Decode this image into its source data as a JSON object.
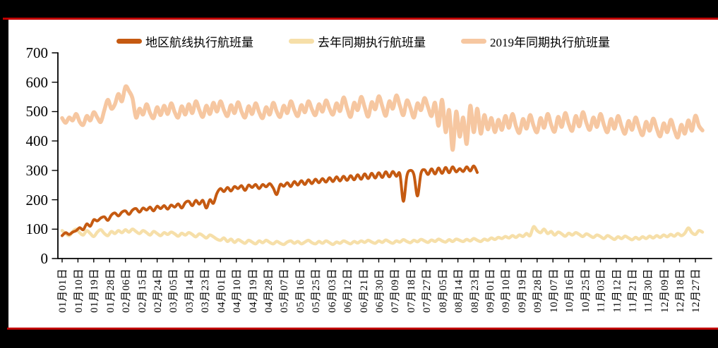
{
  "frame": {
    "outer_background": "#000000",
    "page_background": "#ffffff",
    "accent_line_color": "#c00000",
    "axis_color": "#000000",
    "text_color": "#000000"
  },
  "legend": {
    "items": [
      {
        "label": "地区航线执行航班量",
        "color": "#C55A11"
      },
      {
        "label": "去年同期执行航班量",
        "color": "#F6DFA9"
      },
      {
        "label": "2019年同期执行航班量",
        "color": "#F6C7A1"
      }
    ]
  },
  "chart_data": {
    "type": "line",
    "title": "",
    "xlabel": "",
    "ylabel": "",
    "grid": false,
    "legend_position": "top",
    "ylim": [
      0,
      700
    ],
    "y_ticks": [
      0,
      100,
      200,
      300,
      400,
      500,
      600,
      700
    ],
    "y_tick_labels": [
      "0",
      "100",
      "200",
      "300",
      "400",
      "500",
      "600",
      "700"
    ],
    "x_unit": "day_of_year",
    "x_domain": [
      1,
      365
    ],
    "x_tick_days": [
      1,
      10,
      19,
      28,
      37,
      46,
      55,
      64,
      73,
      82,
      91,
      100,
      109,
      118,
      127,
      136,
      145,
      154,
      163,
      172,
      181,
      190,
      199,
      208,
      217,
      226,
      235,
      244,
      253,
      262,
      271,
      280,
      289,
      298,
      307,
      316,
      325,
      334,
      343,
      352,
      361
    ],
    "x_tick_labels": [
      "01月01日",
      "01月10日",
      "01月19日",
      "01月28日",
      "02月06日",
      "02月15日",
      "02月24日",
      "03月05日",
      "03月14日",
      "03月23日",
      "04月01日",
      "04月10日",
      "04月19日",
      "04月28日",
      "05月07日",
      "05月16日",
      "05月25日",
      "06月03日",
      "06月12日",
      "06月21日",
      "06月30日",
      "07月09日",
      "07月18日",
      "07月27日",
      "08月05日",
      "08月14日",
      "08月23日",
      "09月01日",
      "09月10日",
      "09月19日",
      "09月28日",
      "10月07日",
      "10月16日",
      "10月25日",
      "11月03日",
      "11月12日",
      "11月21日",
      "11月30日",
      "12月09日",
      "12月18日",
      "12月27日"
    ],
    "series": [
      {
        "name": "地区航线执行航班量",
        "color": "#C55A11",
        "x_start": 1,
        "x_step": 2,
        "values": [
          78,
          88,
          82,
          90,
          95,
          105,
          98,
          118,
          110,
          132,
          128,
          138,
          142,
          130,
          148,
          155,
          145,
          158,
          162,
          150,
          165,
          170,
          158,
          172,
          165,
          175,
          162,
          178,
          170,
          180,
          168,
          182,
          175,
          186,
          172,
          190,
          195,
          180,
          198,
          185,
          198,
          172,
          200,
          188,
          222,
          238,
          228,
          242,
          230,
          245,
          238,
          248,
          232,
          250,
          242,
          252,
          238,
          252,
          244,
          255,
          240,
          218,
          252,
          246,
          258,
          245,
          262,
          250,
          265,
          252,
          268,
          255,
          270,
          258,
          272,
          260,
          275,
          262,
          278,
          264,
          280,
          266,
          282,
          268,
          285,
          270,
          288,
          272,
          290,
          274,
          292,
          276,
          295,
          278,
          296,
          280,
          288,
          195,
          282,
          300,
          285,
          213,
          290,
          302,
          286,
          305,
          288,
          308,
          290,
          310,
          292,
          312,
          295,
          306,
          296,
          312,
          298,
          315,
          293
        ]
      },
      {
        "name": "去年同期执行航班量",
        "color": "#F6DFA9",
        "x_start": 1,
        "x_step": 2,
        "values": [
          95,
          85,
          78,
          92,
          100,
          88,
          80,
          95,
          85,
          75,
          90,
          98,
          85,
          78,
          92,
          85,
          95,
          88,
          98,
          90,
          100,
          92,
          85,
          95,
          88,
          80,
          92,
          85,
          78,
          88,
          82,
          90,
          84,
          76,
          86,
          80,
          88,
          82,
          74,
          84,
          78,
          70,
          80,
          74,
          66,
          62,
          70,
          58,
          66,
          55,
          64,
          58,
          52,
          62,
          56,
          50,
          60,
          54,
          62,
          55,
          50,
          58,
          52,
          48,
          56,
          60,
          52,
          58,
          50,
          56,
          62,
          54,
          50,
          58,
          52,
          60,
          54,
          48,
          56,
          52,
          60,
          55,
          50,
          58,
          53,
          60,
          55,
          62,
          56,
          52,
          60,
          55,
          63,
          57,
          52,
          60,
          56,
          64,
          58,
          54,
          62,
          57,
          65,
          60,
          55,
          63,
          58,
          66,
          60,
          56,
          64,
          58,
          66,
          62,
          58,
          65,
          60,
          68,
          62,
          58,
          66,
          62,
          70,
          65,
          72,
          68,
          75,
          70,
          78,
          72,
          80,
          75,
          85,
          78,
          108,
          95,
          88,
          100,
          85,
          92,
          80,
          90,
          84,
          76,
          86,
          80,
          88,
          82,
          75,
          84,
          78,
          72,
          80,
          75,
          68,
          78,
          72,
          65,
          74,
          68,
          76,
          70,
          64,
          72,
          66,
          74,
          68,
          76,
          70,
          78,
          72,
          80,
          74,
          82,
          76,
          85,
          78,
          86,
          104,
          88,
          82,
          95,
          90
        ]
      },
      {
        "name": "2019年同期执行航班量",
        "color": "#F6C7A1",
        "x_start": 1,
        "x_step": 2,
        "values": [
          478,
          462,
          480,
          470,
          492,
          465,
          455,
          485,
          470,
          498,
          480,
          465,
          505,
          540,
          510,
          525,
          560,
          535,
          585,
          570,
          545,
          480,
          510,
          490,
          525,
          495,
          478,
          515,
          488,
          520,
          492,
          528,
          498,
          480,
          518,
          490,
          525,
          495,
          535,
          505,
          482,
          520,
          492,
          530,
          500,
          535,
          505,
          485,
          522,
          495,
          532,
          500,
          480,
          518,
          492,
          528,
          498,
          478,
          515,
          490,
          530,
          500,
          482,
          520,
          495,
          535,
          505,
          485,
          522,
          498,
          535,
          508,
          488,
          525,
          500,
          538,
          510,
          490,
          528,
          502,
          548,
          512,
          482,
          530,
          505,
          550,
          515,
          483,
          532,
          508,
          552,
          518,
          486,
          535,
          510,
          555,
          520,
          488,
          538,
          512,
          480,
          528,
          505,
          546,
          515,
          485,
          530,
          452,
          540,
          430,
          505,
          370,
          500,
          415,
          480,
          390,
          520,
          430,
          510,
          425,
          488,
          440,
          478,
          430,
          472,
          438,
          485,
          445,
          492,
          450,
          428,
          475,
          442,
          488,
          452,
          430,
          478,
          445,
          492,
          455,
          432,
          482,
          448,
          495,
          458,
          435,
          485,
          450,
          498,
          462,
          438,
          480,
          448,
          492,
          455,
          430,
          475,
          442,
          485,
          450,
          425,
          468,
          438,
          480,
          445,
          420,
          465,
          435,
          476,
          442,
          416,
          460,
          430,
          472,
          438,
          412,
          455,
          425,
          470,
          435,
          486,
          452,
          436
        ]
      }
    ]
  }
}
